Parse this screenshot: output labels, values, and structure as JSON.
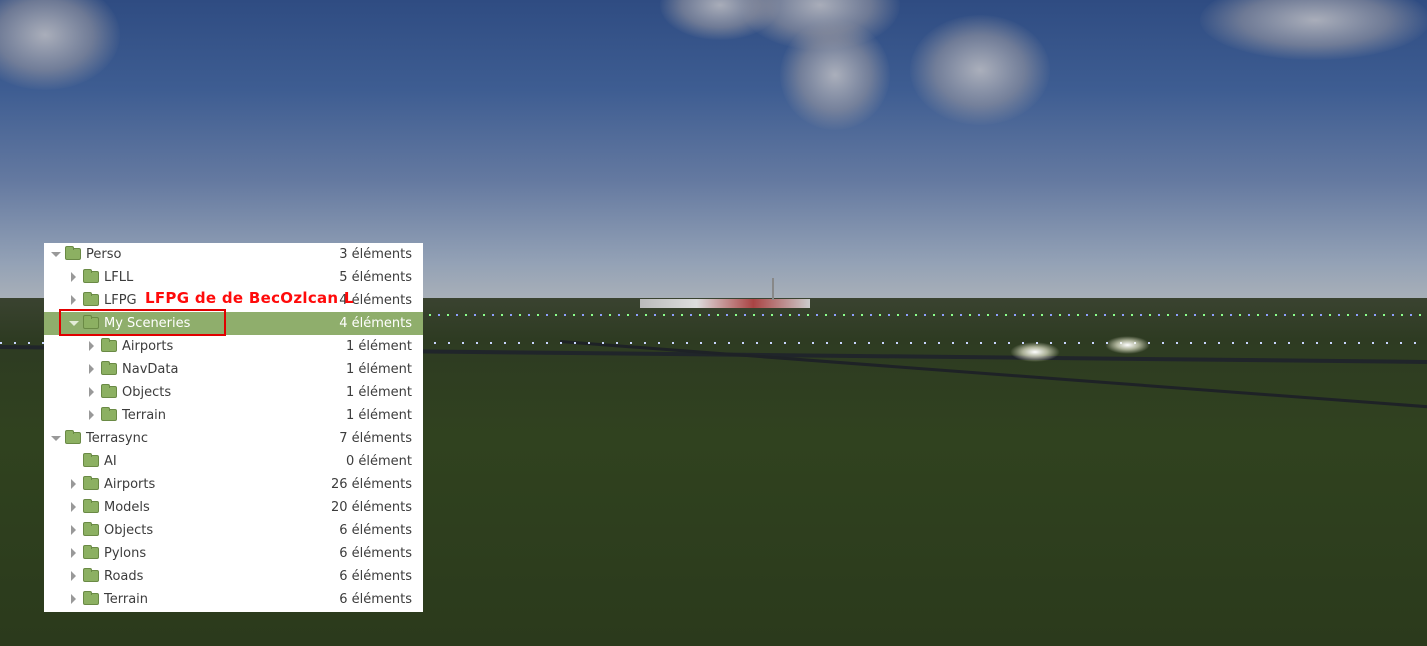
{
  "tree": {
    "rows": [
      {
        "label": "Perso",
        "count": "3 éléments",
        "level": 0,
        "expander": "down"
      },
      {
        "label": "LFLL",
        "count": "5 éléments",
        "level": 1,
        "expander": "right"
      },
      {
        "label": "LFPG",
        "count": "4 éléments",
        "level": 1,
        "expander": "right"
      },
      {
        "label": "My Sceneries",
        "count": "4 éléments",
        "level": 1,
        "expander": "down",
        "selected": true
      },
      {
        "label": "Airports",
        "count": "1 élément",
        "level": 2,
        "expander": "right"
      },
      {
        "label": "NavData",
        "count": "1 élément",
        "level": 2,
        "expander": "right"
      },
      {
        "label": "Objects",
        "count": "1 élément",
        "level": 2,
        "expander": "right"
      },
      {
        "label": "Terrain",
        "count": "1 élément",
        "level": 2,
        "expander": "right"
      },
      {
        "label": "Terrasync",
        "count": "7 éléments",
        "level": 0,
        "expander": "down"
      },
      {
        "label": "AI",
        "count": "0 élément",
        "level": 1,
        "expander": "none"
      },
      {
        "label": "Airports",
        "count": "26 éléments",
        "level": 1,
        "expander": "right"
      },
      {
        "label": "Models",
        "count": "20 éléments",
        "level": 1,
        "expander": "right"
      },
      {
        "label": "Objects",
        "count": "6 éléments",
        "level": 1,
        "expander": "right"
      },
      {
        "label": "Pylons",
        "count": "6 éléments",
        "level": 1,
        "expander": "right"
      },
      {
        "label": "Roads",
        "count": "6 éléments",
        "level": 1,
        "expander": "right"
      },
      {
        "label": "Terrain",
        "count": "6 éléments",
        "level": 1,
        "expander": "right"
      }
    ],
    "selection_color": "#8fae6c",
    "folder_icon": "folder-icon"
  },
  "annotation": {
    "text": "LFPG de de BecOzlcan L",
    "color": "#ff0a0a",
    "highlight_color": "#e00000"
  }
}
